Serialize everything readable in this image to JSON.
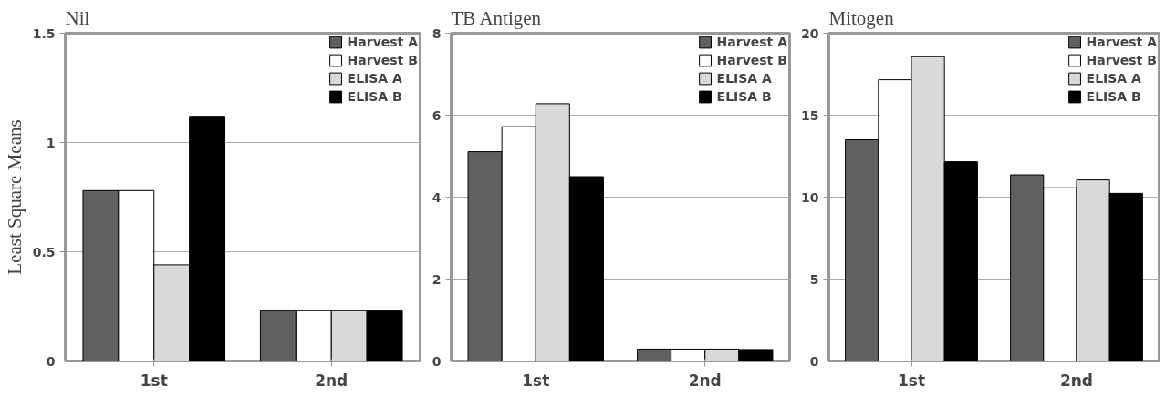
{
  "chart_data": [
    {
      "type": "bar",
      "title": "Nil",
      "ylabel": "Least Square Means",
      "categories": [
        "1st",
        "2nd"
      ],
      "ylim": [
        0,
        1.5
      ],
      "yticks": [
        0,
        0.5,
        1,
        1.5
      ],
      "grid": "y",
      "legend": "top right",
      "series": [
        {
          "name": "Harvest A",
          "color": "#606060",
          "values": [
            0.78,
            0.23
          ]
        },
        {
          "name": "Harvest B",
          "color": "#ffffff",
          "values": [
            0.78,
            0.23
          ]
        },
        {
          "name": "ELISA A",
          "color": "#d9d9d9",
          "values": [
            0.44,
            0.23
          ]
        },
        {
          "name": "ELISA B",
          "color": "#000000",
          "values": [
            1.12,
            0.23
          ]
        }
      ]
    },
    {
      "type": "bar",
      "title": "TB Antigen",
      "categories": [
        "1st",
        "2nd"
      ],
      "ylim": [
        0,
        8
      ],
      "yticks": [
        0,
        2,
        4,
        6,
        8
      ],
      "grid": "y",
      "legend": "top right",
      "series": [
        {
          "name": "Harvest A",
          "color": "#606060",
          "values": [
            5.11,
            0.29
          ]
        },
        {
          "name": "Harvest B",
          "color": "#ffffff",
          "values": [
            5.72,
            0.29
          ]
        },
        {
          "name": "ELISA A",
          "color": "#d9d9d9",
          "values": [
            6.28,
            0.29
          ]
        },
        {
          "name": "ELISA B",
          "color": "#000000",
          "values": [
            4.5,
            0.28
          ]
        }
      ]
    },
    {
      "type": "bar",
      "title": "Mitogen",
      "categories": [
        "1st",
        "2nd"
      ],
      "ylim": [
        0,
        20
      ],
      "yticks": [
        0,
        5,
        10,
        15,
        20
      ],
      "grid": "y",
      "legend": "top right",
      "series": [
        {
          "name": "Harvest A",
          "color": "#606060",
          "values": [
            13.5,
            11.36
          ]
        },
        {
          "name": "Harvest B",
          "color": "#ffffff",
          "values": [
            17.16,
            10.57
          ]
        },
        {
          "name": "ELISA A",
          "color": "#d9d9d9",
          "values": [
            18.57,
            11.05
          ]
        },
        {
          "name": "ELISA B",
          "color": "#000000",
          "values": [
            12.16,
            10.23
          ]
        }
      ]
    }
  ]
}
